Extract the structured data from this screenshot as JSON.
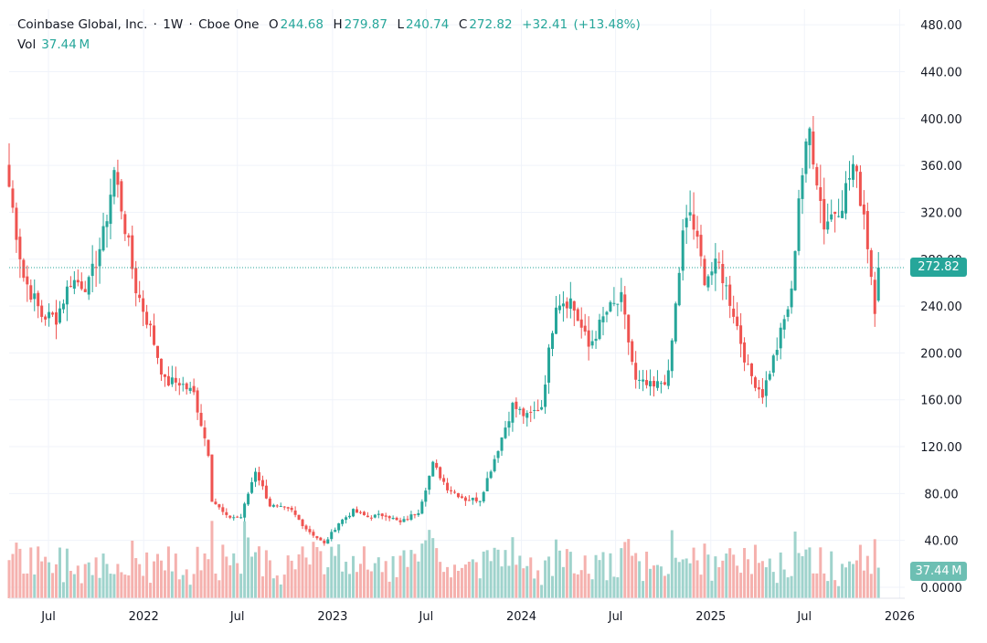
{
  "header": {
    "symbol": "Coinbase Global, Inc.",
    "interval": "1W",
    "exchange": "Cboe One",
    "separator": "·",
    "open_label": "O",
    "open": "244.68",
    "high_label": "H",
    "high": "279.87",
    "low_label": "L",
    "low": "240.74",
    "close_label": "C",
    "close": "272.82",
    "change": "+32.41",
    "change_pct": "(+13.48%)"
  },
  "volume": {
    "label": "Vol",
    "value": "37.44 M"
  },
  "last_price_label": "272.82",
  "last_volume_label": "37.44 M",
  "colors": {
    "up": "#26a69a",
    "down": "#ef5350",
    "up_vol": "#9fd3cc",
    "down_vol": "#f5b1ae",
    "grid": "#f0f3fa",
    "axis_text": "#131722"
  },
  "chart_data": {
    "type": "candlestick",
    "ylim": [
      0,
      480
    ],
    "y_ticks": [
      "0.0000",
      "40.00",
      "80.00",
      "120.00",
      "160.00",
      "200.00",
      "240.00",
      "280.00",
      "320.00",
      "360.00",
      "400.00",
      "440.00",
      "480.00"
    ],
    "x_ticks": [
      "Jul",
      "2022",
      "Jul",
      "2023",
      "Jul",
      "2024",
      "Jul",
      "2025",
      "Jul",
      "2026"
    ],
    "last_close": 272.82,
    "weekly_close_path": [
      {
        "date": "2021-04-16",
        "close": 342
      },
      {
        "date": "2021-05-14",
        "close": 265
      },
      {
        "date": "2021-06-18",
        "close": 232
      },
      {
        "date": "2021-07-16",
        "close": 230
      },
      {
        "date": "2021-08-13",
        "close": 262
      },
      {
        "date": "2021-09-17",
        "close": 258
      },
      {
        "date": "2021-10-15",
        "close": 300
      },
      {
        "date": "2021-11-05",
        "close": 355
      },
      {
        "date": "2021-11-19",
        "close": 325
      },
      {
        "date": "2021-12-17",
        "close": 255
      },
      {
        "date": "2022-01-14",
        "close": 220
      },
      {
        "date": "2022-02-11",
        "close": 175
      },
      {
        "date": "2022-03-11",
        "close": 175
      },
      {
        "date": "2022-04-08",
        "close": 165
      },
      {
        "date": "2022-05-06",
        "close": 115
      },
      {
        "date": "2022-05-13",
        "close": 75
      },
      {
        "date": "2022-06-10",
        "close": 60
      },
      {
        "date": "2022-07-08",
        "close": 60
      },
      {
        "date": "2022-08-05",
        "close": 100
      },
      {
        "date": "2022-09-02",
        "close": 70
      },
      {
        "date": "2022-10-14",
        "close": 65
      },
      {
        "date": "2022-11-11",
        "close": 50
      },
      {
        "date": "2022-12-16",
        "close": 37
      },
      {
        "date": "2023-01-13",
        "close": 55
      },
      {
        "date": "2023-02-10",
        "close": 65
      },
      {
        "date": "2023-03-10",
        "close": 60
      },
      {
        "date": "2023-04-14",
        "close": 62
      },
      {
        "date": "2023-05-12",
        "close": 55
      },
      {
        "date": "2023-06-16",
        "close": 65
      },
      {
        "date": "2023-07-14",
        "close": 105
      },
      {
        "date": "2023-08-11",
        "close": 85
      },
      {
        "date": "2023-09-15",
        "close": 75
      },
      {
        "date": "2023-10-13",
        "close": 75
      },
      {
        "date": "2023-11-10",
        "close": 110
      },
      {
        "date": "2023-12-15",
        "close": 155
      },
      {
        "date": "2024-01-12",
        "close": 145
      },
      {
        "date": "2024-02-09",
        "close": 155
      },
      {
        "date": "2024-03-08",
        "close": 245
      },
      {
        "date": "2024-04-05",
        "close": 245
      },
      {
        "date": "2024-05-10",
        "close": 205
      },
      {
        "date": "2024-06-14",
        "close": 235
      },
      {
        "date": "2024-07-12",
        "close": 245
      },
      {
        "date": "2024-08-09",
        "close": 175
      },
      {
        "date": "2024-09-13",
        "close": 170
      },
      {
        "date": "2024-10-11",
        "close": 180
      },
      {
        "date": "2024-11-08",
        "close": 300
      },
      {
        "date": "2024-11-22",
        "close": 320
      },
      {
        "date": "2024-12-20",
        "close": 265
      },
      {
        "date": "2025-01-17",
        "close": 275
      },
      {
        "date": "2025-02-14",
        "close": 235
      },
      {
        "date": "2025-03-14",
        "close": 185
      },
      {
        "date": "2025-04-11",
        "close": 165
      },
      {
        "date": "2025-05-09",
        "close": 205
      },
      {
        "date": "2025-06-06",
        "close": 250
      },
      {
        "date": "2025-06-20",
        "close": 335
      },
      {
        "date": "2025-07-11",
        "close": 390
      },
      {
        "date": "2025-08-08",
        "close": 310
      },
      {
        "date": "2025-09-12",
        "close": 330
      },
      {
        "date": "2025-10-03",
        "close": 360
      },
      {
        "date": "2025-10-24",
        "close": 320
      },
      {
        "date": "2025-11-14",
        "close": 240
      },
      {
        "date": "2025-11-21",
        "close": 272.82
      }
    ]
  }
}
